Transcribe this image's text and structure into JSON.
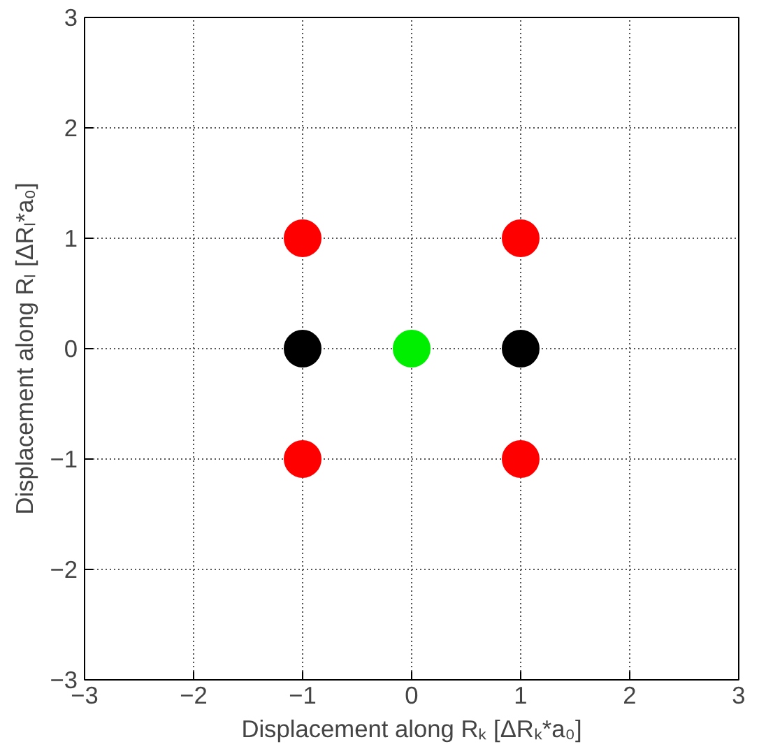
{
  "chart_data": {
    "type": "scatter",
    "xlabel": "Displacement along Rₖ [ΔRₖ*a₀]",
    "ylabel": "Displacement along Rₗ [ΔRₗ*a₀]",
    "xlim": [
      -3,
      3
    ],
    "ylim": [
      -3,
      3
    ],
    "xticks": [
      -3,
      -2,
      -1,
      0,
      1,
      2,
      3
    ],
    "yticks": [
      -3,
      -2,
      -1,
      0,
      1,
      2,
      3
    ],
    "grid": true,
    "marker": "circle",
    "series": [
      {
        "color": "#ff0000",
        "x": [
          -1,
          1,
          -1,
          1
        ],
        "values": [
          1,
          1,
          -1,
          -1
        ]
      },
      {
        "color": "#000000",
        "x": [
          -1,
          1
        ],
        "values": [
          0,
          0
        ]
      },
      {
        "color": "#00ee00",
        "x": [
          0
        ],
        "values": [
          0
        ]
      }
    ]
  }
}
